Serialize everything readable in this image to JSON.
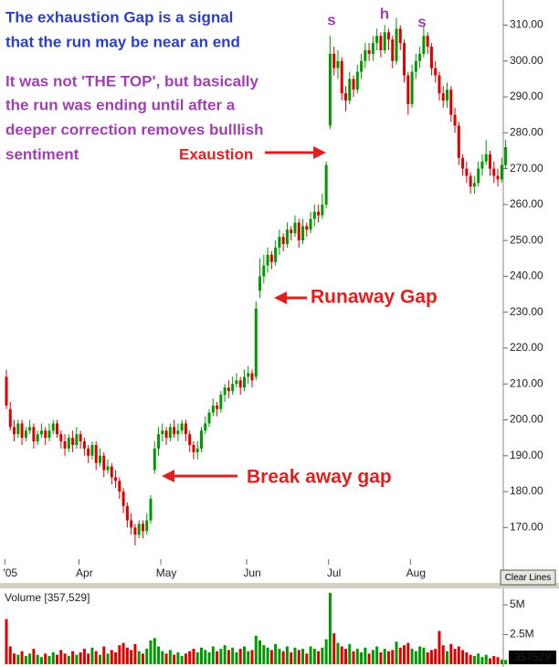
{
  "chart_data": [
    {
      "type": "candlestick",
      "categories": [
        null,
        "'05",
        null,
        null,
        null,
        null,
        null,
        null,
        null,
        null,
        null,
        null,
        null,
        null,
        null,
        null,
        null,
        null,
        null,
        null,
        "Apr",
        null,
        null,
        null,
        null,
        null,
        null,
        null,
        null,
        null,
        null,
        null,
        null,
        null,
        null,
        null,
        null,
        null,
        null,
        null,
        null,
        "May",
        null,
        null,
        null,
        null,
        null,
        null,
        null,
        null,
        null,
        null,
        null,
        null,
        null,
        null,
        null,
        null,
        null,
        null,
        null,
        null,
        null,
        "Jun",
        null,
        null,
        null,
        null,
        null,
        null,
        null,
        null,
        null,
        null,
        null,
        null,
        null,
        null,
        null,
        null,
        null,
        null,
        null,
        null,
        "Jul",
        null,
        null,
        null,
        null,
        null,
        null,
        null,
        null,
        null,
        null,
        null,
        null,
        null,
        null,
        null,
        null,
        null,
        null,
        null,
        null,
        "Aug",
        null,
        null,
        null,
        null,
        null,
        null,
        null,
        null,
        null,
        null,
        null,
        null,
        null,
        null,
        null,
        null,
        null,
        null,
        null,
        null,
        null,
        null,
        null
      ],
      "open": [
        212,
        203,
        198,
        196,
        199,
        195,
        197,
        198,
        194,
        196,
        197,
        195,
        197,
        199,
        196,
        194,
        192,
        195,
        193,
        196,
        194,
        192,
        190,
        193,
        188,
        190,
        186,
        187,
        184,
        183,
        180,
        176,
        172,
        170,
        168,
        171,
        169,
        172,
        186,
        192,
        196,
        197,
        195,
        198,
        196,
        197,
        199,
        196,
        193,
        191,
        192,
        197,
        199,
        202,
        204,
        203,
        207,
        209,
        208,
        210,
        211,
        209,
        212,
        213,
        212,
        236,
        240,
        243,
        246,
        244,
        248,
        251,
        249,
        253,
        252,
        255,
        250,
        254,
        253,
        256,
        258,
        257,
        260,
        282,
        302,
        298,
        300,
        291,
        289,
        295,
        292,
        297,
        300,
        303,
        302,
        305,
        307,
        303,
        308,
        306,
        300,
        309,
        305,
        296,
        288,
        297,
        300,
        302,
        307,
        304,
        298,
        296,
        291,
        289,
        292,
        285,
        282,
        273,
        270,
        268,
        265,
        266,
        270,
        272,
        274,
        270,
        268,
        267,
        271
      ],
      "high": [
        214,
        205,
        200,
        200,
        200,
        198,
        200,
        199,
        197,
        199,
        198,
        199,
        200,
        200,
        197,
        196,
        196,
        197,
        198,
        197,
        195,
        193,
        194,
        194,
        192,
        191,
        189,
        188,
        186,
        184,
        181,
        177,
        174,
        171,
        172,
        172,
        174,
        179,
        194,
        198,
        199,
        198,
        199,
        200,
        199,
        200,
        200,
        197,
        194,
        194,
        198,
        201,
        203,
        206,
        205,
        208,
        210,
        211,
        212,
        213,
        212,
        214,
        215,
        214,
        233,
        245,
        246,
        248,
        247,
        250,
        253,
        252,
        255,
        254,
        257,
        256,
        256,
        255,
        258,
        260,
        260,
        263,
        272,
        307,
        304,
        303,
        301,
        293,
        297,
        296,
        299,
        302,
        305,
        305,
        307,
        309,
        308,
        310,
        309,
        307,
        312,
        310,
        306,
        297,
        299,
        302,
        304,
        310,
        308,
        305,
        300,
        297,
        293,
        294,
        293,
        287,
        283,
        274,
        272,
        269,
        268,
        272,
        274,
        278,
        275,
        272,
        270,
        273,
        278
      ],
      "low": [
        203,
        197,
        194,
        195,
        193,
        194,
        196,
        192,
        193,
        195,
        193,
        194,
        196,
        195,
        192,
        190,
        191,
        191,
        192,
        192,
        190,
        188,
        189,
        186,
        187,
        184,
        185,
        182,
        181,
        178,
        174,
        170,
        168,
        165,
        167,
        167,
        168,
        171,
        185,
        190,
        194,
        193,
        194,
        195,
        194,
        196,
        194,
        191,
        189,
        189,
        191,
        196,
        198,
        201,
        201,
        202,
        205,
        206,
        207,
        209,
        207,
        208,
        210,
        209,
        211,
        234,
        238,
        241,
        242,
        243,
        246,
        247,
        248,
        250,
        251,
        248,
        249,
        251,
        252,
        254,
        255,
        256,
        259,
        281,
        296,
        295,
        289,
        286,
        288,
        290,
        291,
        295,
        298,
        300,
        300,
        303,
        301,
        302,
        303,
        298,
        299,
        303,
        294,
        285,
        287,
        295,
        298,
        301,
        302,
        296,
        294,
        289,
        287,
        287,
        283,
        280,
        271,
        268,
        266,
        263,
        263,
        265,
        268,
        271,
        268,
        266,
        265,
        266,
        270
      ],
      "close": [
        204,
        198,
        196,
        199,
        195,
        197,
        198,
        194,
        196,
        197,
        195,
        197,
        199,
        196,
        194,
        192,
        195,
        193,
        196,
        194,
        192,
        190,
        193,
        188,
        190,
        186,
        187,
        184,
        183,
        180,
        176,
        172,
        170,
        168,
        171,
        169,
        172,
        178,
        192,
        196,
        197,
        195,
        198,
        196,
        197,
        199,
        196,
        193,
        191,
        192,
        197,
        199,
        202,
        204,
        203,
        207,
        209,
        208,
        210,
        211,
        209,
        212,
        213,
        211,
        231,
        240,
        243,
        246,
        244,
        248,
        251,
        249,
        253,
        252,
        255,
        250,
        254,
        253,
        256,
        258,
        257,
        260,
        271,
        302,
        298,
        300,
        291,
        289,
        295,
        292,
        297,
        300,
        303,
        302,
        305,
        307,
        303,
        308,
        306,
        300,
        309,
        305,
        296,
        288,
        297,
        300,
        302,
        307,
        304,
        298,
        296,
        291,
        289,
        292,
        285,
        282,
        273,
        270,
        268,
        265,
        266,
        270,
        272,
        274,
        270,
        268,
        267,
        271,
        276
      ],
      "up_color": "#009900",
      "down_color": "#dd0000",
      "ylim": [
        165.5,
        317
      ],
      "yticks": [
        {
          "value": 170,
          "label": "170.00"
        },
        {
          "value": 180,
          "label": "180.00"
        },
        {
          "value": 190,
          "label": "190.00"
        },
        {
          "value": 200,
          "label": "200.00"
        },
        {
          "value": 210,
          "label": "210.00"
        },
        {
          "value": 220,
          "label": "220.00"
        },
        {
          "value": 230,
          "label": "230.00"
        },
        {
          "value": 240,
          "label": "240.00"
        },
        {
          "value": 250,
          "label": "250.00"
        },
        {
          "value": 260,
          "label": "260.00"
        },
        {
          "value": 270,
          "label": "270.00"
        },
        {
          "value": 280,
          "label": "280.00"
        },
        {
          "value": 290,
          "label": "290.00"
        },
        {
          "value": 300,
          "label": "300.00"
        },
        {
          "value": 310,
          "label": "310.00"
        }
      ],
      "annotations": [
        {
          "text": "The exhaustion Gap is a signal",
          "color": "#2b3fc0"
        },
        {
          "text": "that the run may be near an end",
          "color": "#2b3fc0"
        },
        {
          "text": "It was not 'THE TOP', but basically",
          "color": "#a040b0"
        },
        {
          "text": "the run was ending until after a",
          "color": "#a040b0"
        },
        {
          "text": "deeper correction removes bulllish",
          "color": "#a040b0"
        },
        {
          "text": "sentiment",
          "color": "#a040b0"
        },
        {
          "text": "Exaustion",
          "color": "#e02020"
        },
        {
          "text": "Runaway Gap",
          "color": "#e02020"
        },
        {
          "text": "Break away gap",
          "color": "#e02020"
        },
        {
          "text": "s",
          "color": "#a040b0"
        },
        {
          "text": "h",
          "color": "#a040b0"
        },
        {
          "text": "s",
          "color": "#a040b0"
        }
      ]
    },
    {
      "type": "bar",
      "title": "Volume [357,529]",
      "values": [
        3800000,
        1500000,
        900000,
        800000,
        1100000,
        700000,
        900000,
        1300000,
        800000,
        600000,
        900000,
        700000,
        1000000,
        800000,
        1200000,
        900000,
        700000,
        1100000,
        800000,
        1000000,
        1300000,
        900000,
        1400000,
        1100000,
        800000,
        1500000,
        900000,
        1200000,
        1000000,
        1600000,
        1800000,
        1400000,
        1200000,
        1700000,
        1100000,
        900000,
        1300000,
        2000000,
        2200000,
        1500000,
        1100000,
        900000,
        1200000,
        800000,
        1000000,
        700000,
        900000,
        1100000,
        1300000,
        1000000,
        1400000,
        1200000,
        1000000,
        1500000,
        1100000,
        1300000,
        1600000,
        1200000,
        1400000,
        1000000,
        1300000,
        1500000,
        1100000,
        1200000,
        2400000,
        2000000,
        1600000,
        1400000,
        1200000,
        1700000,
        1300000,
        1100000,
        1500000,
        1000000,
        1400000,
        1200000,
        1300000,
        900000,
        1500000,
        1300000,
        1100000,
        1400000,
        2100000,
        6000000,
        2600000,
        1800000,
        1500000,
        1300000,
        1700000,
        1100000,
        1300000,
        1000000,
        1400000,
        900000,
        1200000,
        1500000,
        1000000,
        1300000,
        1100000,
        1200000,
        1900000,
        1400000,
        1600000,
        1800000,
        1300000,
        1100000,
        1500000,
        1400000,
        1000000,
        1200000,
        1300000,
        2800000,
        1600000,
        1100000,
        1700000,
        1300000,
        1500000,
        1200000,
        1000000,
        800000,
        700000,
        900000,
        600000,
        800000,
        500000,
        700000,
        600000,
        400000,
        357529
      ],
      "ylim": [
        0,
        6300000
      ],
      "yticks": [
        {
          "value": 2500000,
          "label": "2.5M"
        },
        {
          "value": 5000000,
          "label": "5M"
        }
      ]
    }
  ],
  "ui": {
    "button": "Clear Lines"
  }
}
